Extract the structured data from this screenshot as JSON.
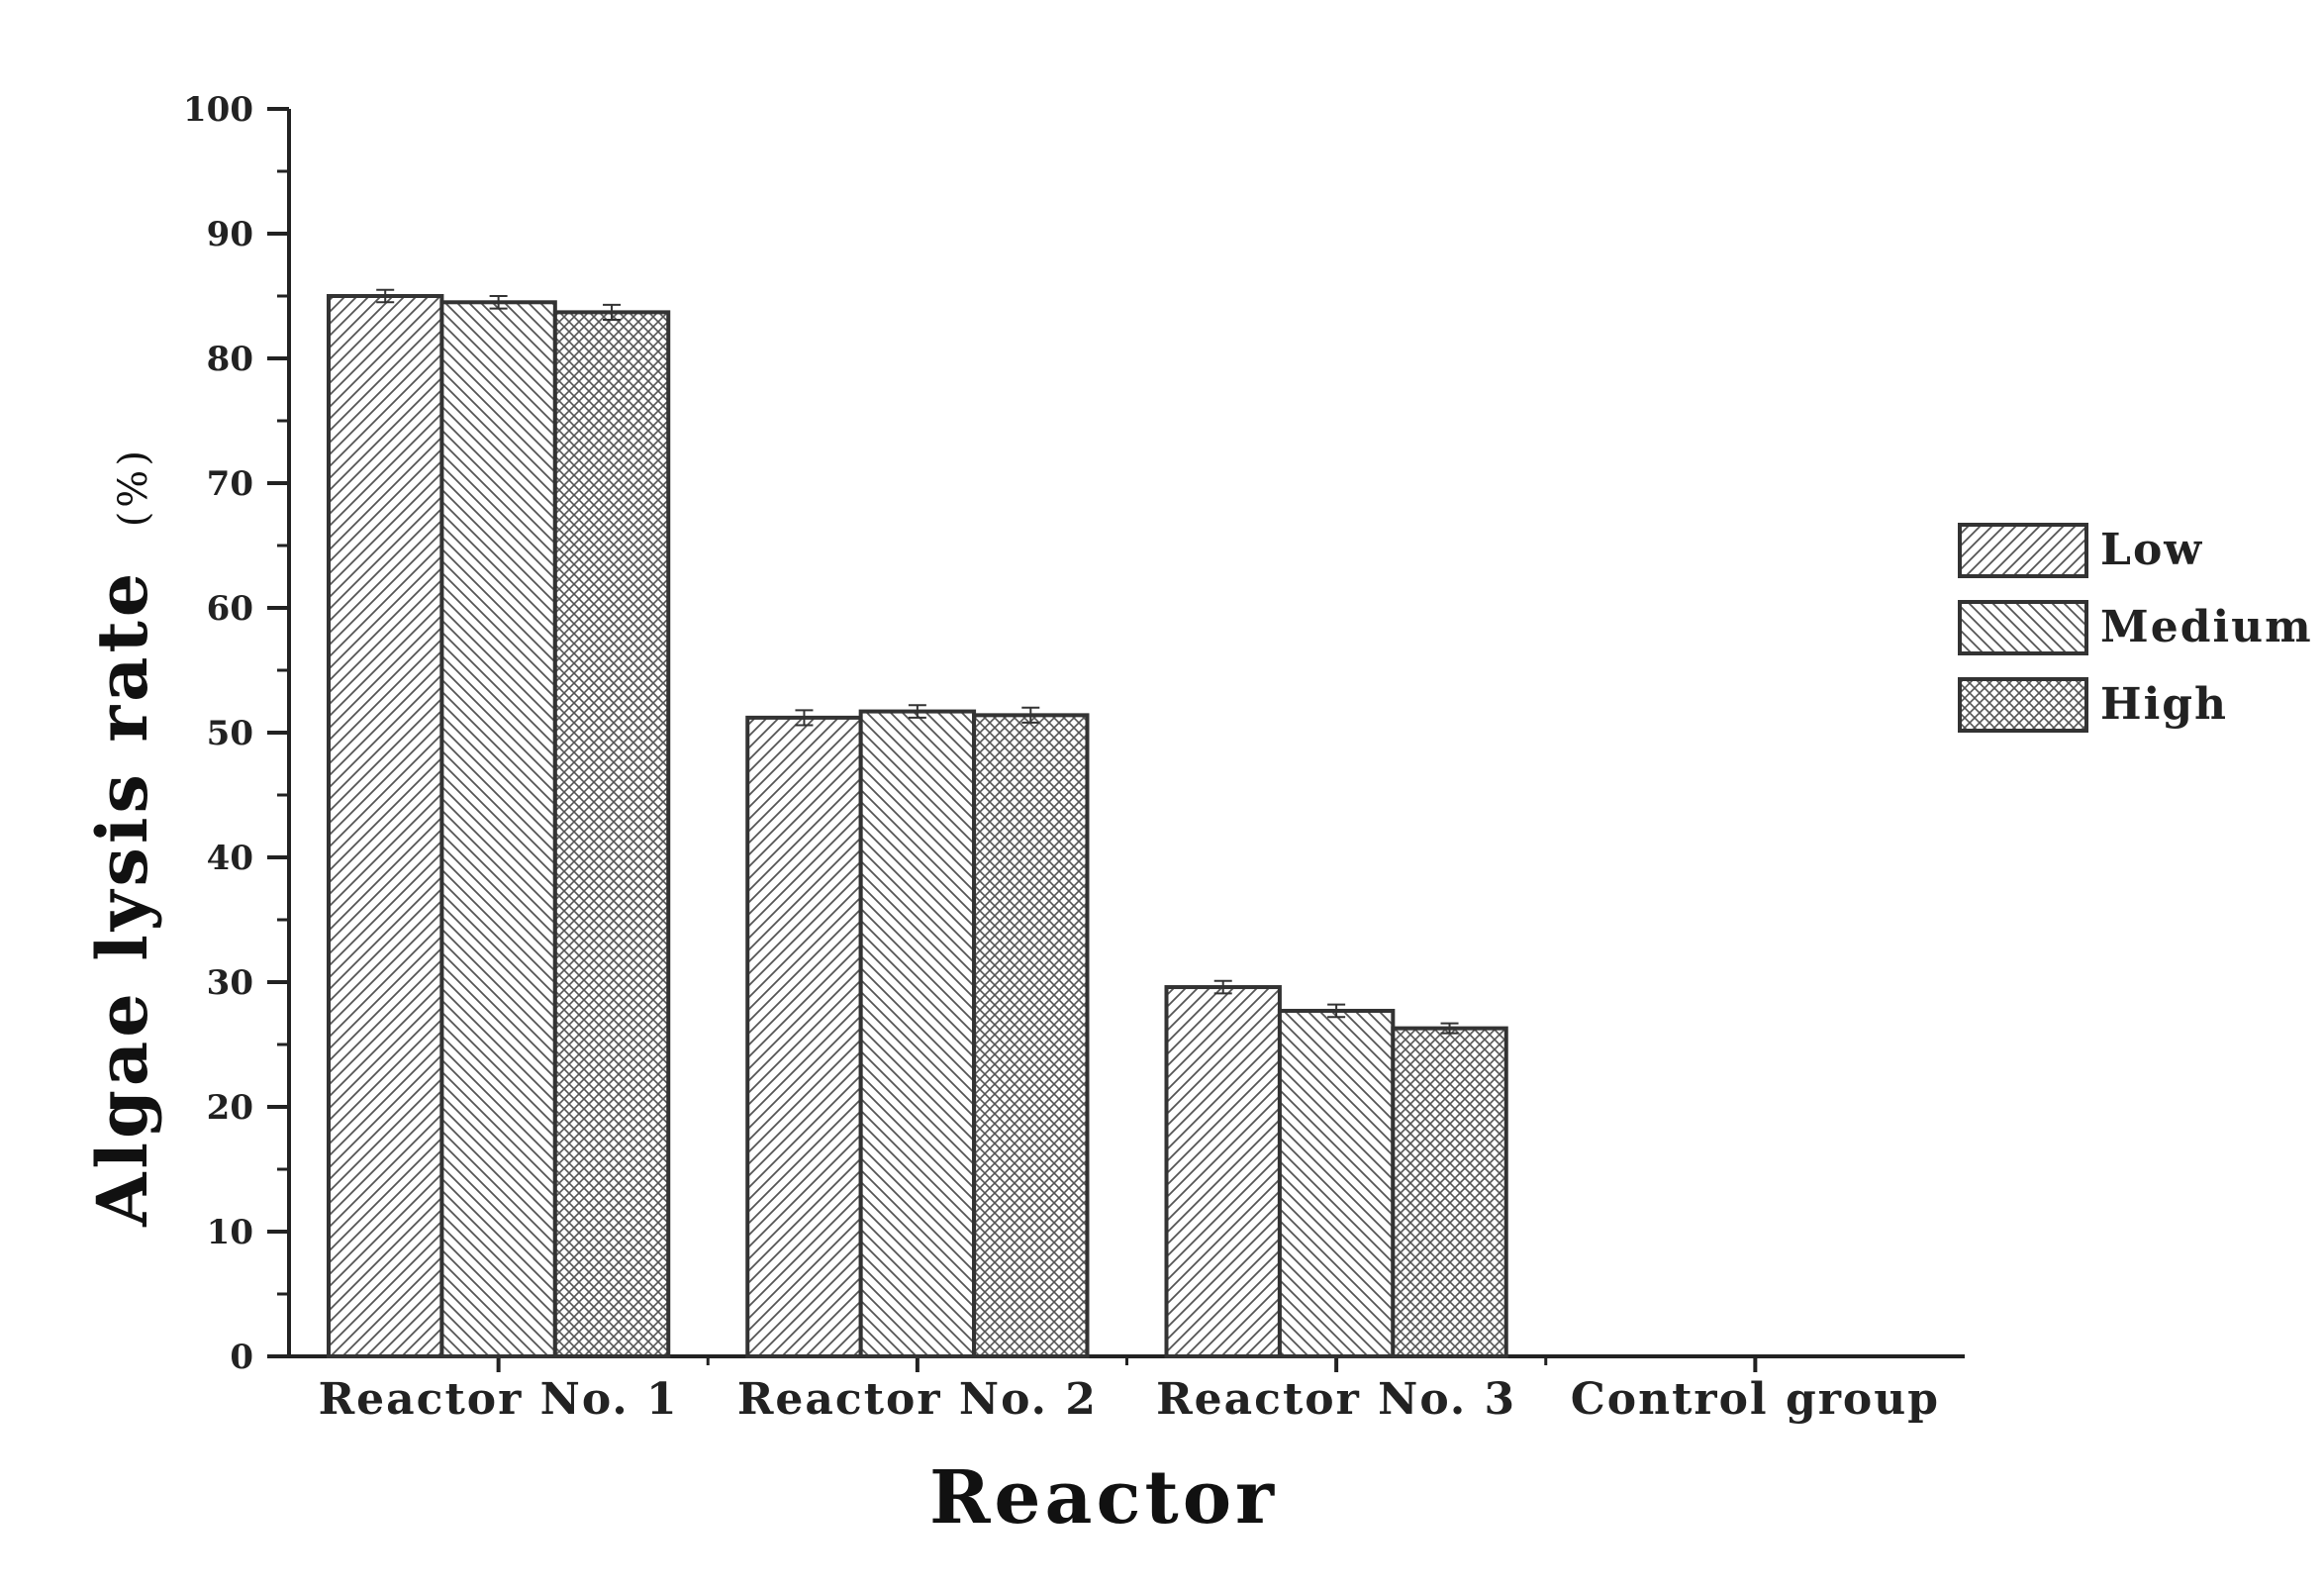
{
  "chart_data": {
    "type": "bar",
    "xlabel": "Reactor",
    "ylabel": "Algae lysis rate",
    "ylabel_unit": "(%)",
    "categories": [
      "Reactor No. 1",
      "Reactor No. 2",
      "Reactor No. 3",
      "Control group"
    ],
    "ylim": [
      0,
      100
    ],
    "yticks": [
      "0",
      "10",
      "20",
      "30",
      "40",
      "50",
      "60",
      "70",
      "80",
      "90",
      "100"
    ],
    "series": [
      {
        "name": "Low",
        "pattern": "diagonal-up",
        "values": [
          85.0,
          51.2,
          29.6,
          0
        ],
        "errors": [
          0.5,
          0.6,
          0.5,
          0
        ]
      },
      {
        "name": "Medium",
        "pattern": "diagonal-down",
        "values": [
          84.5,
          51.7,
          27.7,
          0
        ],
        "errors": [
          0.5,
          0.5,
          0.5,
          0
        ]
      },
      {
        "name": "High",
        "pattern": "crosshatch",
        "values": [
          83.7,
          51.4,
          26.3,
          0
        ],
        "errors": [
          0.6,
          0.6,
          0.4,
          0
        ]
      }
    ],
    "legend_position": "right",
    "grid": false,
    "colors": {
      "bar_stroke": "#333333",
      "hatch": "#555555",
      "background": "#ffffff"
    }
  }
}
